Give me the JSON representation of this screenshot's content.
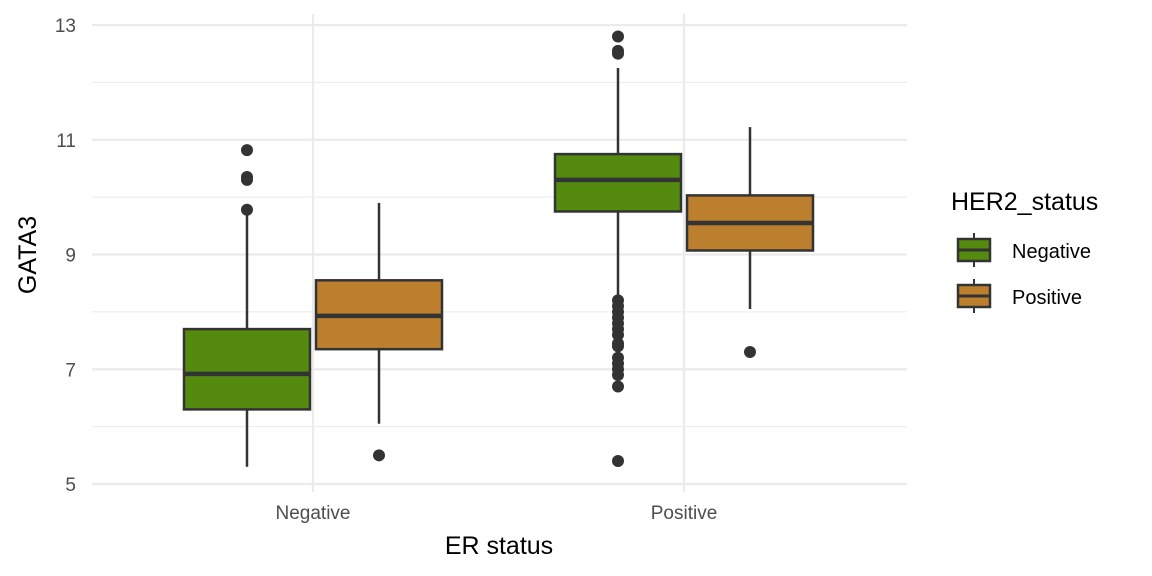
{
  "chart_data": {
    "type": "box",
    "xlabel": "ER status",
    "ylabel": "GATA3",
    "ylim": [
      5,
      13
    ],
    "yticks": [
      5,
      7,
      9,
      11,
      13
    ],
    "categories": [
      "Negative",
      "Positive"
    ],
    "grid": true,
    "legend": {
      "title": "HER2_status",
      "position": "right",
      "entries": [
        "Negative",
        "Positive"
      ]
    },
    "colors": {
      "Negative": "#548B0F",
      "Positive": "#BC7F2E",
      "outline": "#333333",
      "grid": "#EBEBEB"
    },
    "groups": [
      {
        "er_status": "Negative",
        "boxes": [
          {
            "her2_status": "Negative",
            "min": 5.3,
            "q1": 6.3,
            "median": 6.92,
            "q3": 7.7,
            "max": 9.75,
            "outliers": [
              9.78,
              10.3,
              10.35,
              10.82
            ]
          },
          {
            "her2_status": "Positive",
            "min": 6.05,
            "q1": 7.35,
            "median": 7.93,
            "q3": 8.55,
            "max": 9.9,
            "outliers": [
              5.5
            ]
          }
        ]
      },
      {
        "er_status": "Positive",
        "boxes": [
          {
            "her2_status": "Negative",
            "min": 8.25,
            "q1": 9.75,
            "median": 10.3,
            "q3": 10.75,
            "max": 12.25,
            "outliers": [
              12.8,
              12.55,
              12.5,
              8.2,
              8.1,
              8.0,
              7.9,
              7.8,
              7.7,
              7.6,
              7.45,
              7.4,
              7.2,
              7.1,
              7.0,
              6.9,
              6.7,
              5.4
            ]
          },
          {
            "her2_status": "Positive",
            "min": 8.05,
            "q1": 9.07,
            "median": 9.55,
            "q3": 10.03,
            "max": 11.22,
            "outliers": [
              7.3
            ]
          }
        ]
      }
    ]
  }
}
